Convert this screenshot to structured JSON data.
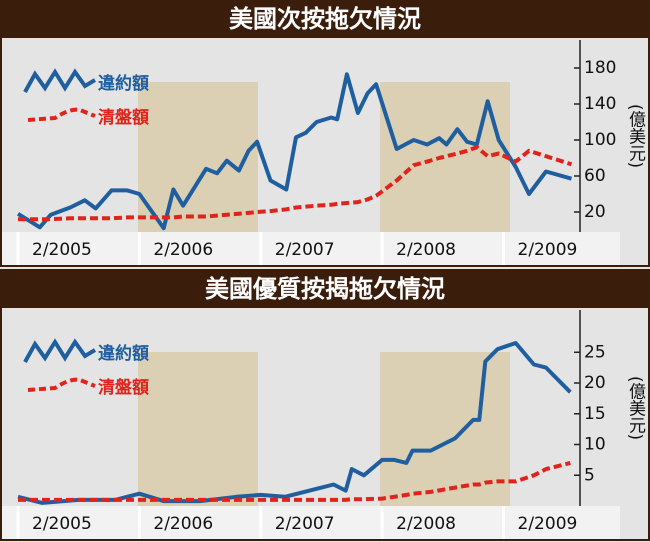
{
  "chart_data": [
    {
      "type": "line",
      "title": "美國次按拖欠情況",
      "y_axis_label": "(億美元)",
      "x": [
        2005.0,
        2005.18,
        2005.27,
        2005.43,
        2005.55,
        2005.64,
        2005.77,
        2005.9,
        2006.0,
        2006.2,
        2006.28,
        2006.36,
        2006.55,
        2006.64,
        2006.72,
        2006.82,
        2006.9,
        2006.97,
        2007.08,
        2007.21,
        2007.29,
        2007.37,
        2007.46,
        2007.58,
        2007.63,
        2007.71,
        2007.8,
        2007.88,
        2007.95,
        2008.12,
        2008.26,
        2008.37,
        2008.47,
        2008.53,
        2008.62,
        2008.7,
        2008.78,
        2008.87,
        2008.96,
        2009.1,
        2009.21,
        2009.35,
        2009.56
      ],
      "series": [
        {
          "name": "違約額",
          "color": "#1f5fa0",
          "values": [
            18,
            3,
            17,
            25,
            33,
            24,
            44,
            44,
            40,
            2,
            45,
            27,
            68,
            63,
            77,
            66,
            88,
            98,
            55,
            45,
            103,
            108,
            120,
            125,
            123,
            173,
            130,
            152,
            162,
            90,
            100,
            95,
            102,
            95,
            112,
            98,
            95,
            143,
            100,
            70,
            40,
            65,
            57
          ]
        },
        {
          "name": "清盤額",
          "color": "#e0231b",
          "values": [
            12,
            12,
            12,
            13,
            13,
            13,
            13,
            14,
            14,
            14,
            14,
            15,
            15,
            16,
            17,
            18,
            19,
            20,
            21,
            23,
            25,
            26,
            27,
            28,
            29,
            30,
            31,
            34,
            38,
            55,
            72,
            76,
            80,
            82,
            85,
            88,
            92,
            82,
            85,
            76,
            88,
            82,
            73
          ]
        }
      ],
      "xlim": [
        2005,
        2009.63
      ],
      "xticks": [
        {
          "value": 2005,
          "label": "2/2005"
        },
        {
          "value": 2006,
          "label": "2/2006"
        },
        {
          "value": 2007,
          "label": "2/2007"
        },
        {
          "value": 2008,
          "label": "2/2008"
        },
        {
          "value": 2009,
          "label": "2/2009"
        }
      ],
      "ylim": [
        0,
        200
      ],
      "yticks": [
        20,
        60,
        100,
        140,
        180
      ]
    },
    {
      "type": "line",
      "title": "美國優質按揭拖欠情況",
      "y_axis_label": "(億美元)",
      "x": [
        2005.0,
        2005.2,
        2005.5,
        2005.8,
        2006.0,
        2006.2,
        2006.5,
        2006.8,
        2007.0,
        2007.2,
        2007.5,
        2007.6,
        2007.7,
        2007.75,
        2007.85,
        2008.0,
        2008.1,
        2008.2,
        2008.25,
        2008.4,
        2008.6,
        2008.75,
        2008.8,
        2008.85,
        2008.95,
        2009.1,
        2009.25,
        2009.35,
        2009.55
      ],
      "series": [
        {
          "name": "違約額",
          "color": "#1f5fa0",
          "values": [
            1.5,
            0.5,
            1,
            1,
            2,
            0.8,
            0.8,
            1.5,
            1.8,
            1.5,
            3,
            3.5,
            2.5,
            6,
            5,
            7.5,
            7.5,
            7,
            9,
            9,
            11,
            14,
            14,
            23.5,
            25.5,
            26.5,
            23,
            22.5,
            18.5
          ]
        },
        {
          "name": "清盤額",
          "color": "#e0231b",
          "values": [
            1,
            1,
            1,
            1,
            1,
            1,
            1,
            1,
            1,
            1,
            1,
            1,
            1,
            1.1,
            1.1,
            1.2,
            1.5,
            1.8,
            2,
            2.3,
            3,
            3.5,
            3.5,
            3.8,
            4,
            4,
            5,
            6,
            7
          ]
        }
      ],
      "xlim": [
        2005,
        2009.63
      ],
      "xticks": [
        {
          "value": 2005,
          "label": "2/2005"
        },
        {
          "value": 2006,
          "label": "2/2006"
        },
        {
          "value": 2007,
          "label": "2/2007"
        },
        {
          "value": 2008,
          "label": "2/2008"
        },
        {
          "value": 2009,
          "label": "2/2009"
        }
      ],
      "ylim": [
        0,
        30
      ],
      "yticks": [
        5,
        10,
        15,
        20,
        25
      ]
    }
  ]
}
